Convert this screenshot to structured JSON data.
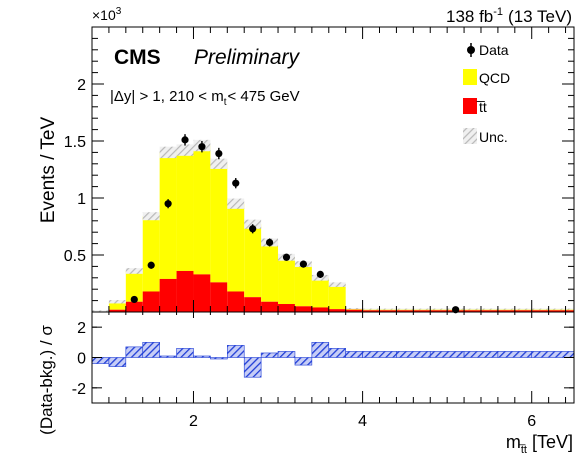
{
  "chart_data": [
    {
      "type": "histogram-stacked",
      "header": {
        "lumi": "138 fb",
        "lumi_sup": "-1",
        "energy": "(13 TeV)",
        "exponent_base": "×10",
        "exponent_power": "3"
      },
      "label_experiment": "CMS",
      "label_status": "Preliminary",
      "selection": {
        "part1": "|Δy| > 1, 210 < m",
        "sub": "t",
        "part2": "< 475 GeV"
      },
      "ylabel": "Events / TeV",
      "xlim": [
        0.8,
        6.5
      ],
      "ylim": [
        0,
        2.5
      ],
      "yticks": [
        "0.5",
        "1",
        "1.5",
        "2"
      ],
      "yticks_values": [
        0.5,
        1.0,
        1.5,
        2.0
      ],
      "legend": {
        "placement": "top-right",
        "data": "Data",
        "qcd": "QCD",
        "ttbar": "t̅t",
        "unc": "Unc."
      },
      "colors": {
        "qcd": "#ffff00",
        "ttbar": "#ff0000",
        "data": "#000000",
        "unc": "#bbbbbb"
      },
      "bin_edges": [
        0.8,
        1.0,
        1.2,
        1.4,
        1.6,
        1.8,
        2.0,
        2.2,
        2.4,
        2.6,
        2.8,
        3.0,
        3.2,
        3.4,
        3.6,
        3.8,
        4.0,
        4.4,
        4.8,
        5.2,
        5.6,
        6.0,
        6.5
      ],
      "series": [
        {
          "name": "t̅t",
          "values": [
            0.002,
            0.02,
            0.09,
            0.18,
            0.29,
            0.36,
            0.33,
            0.26,
            0.18,
            0.13,
            0.09,
            0.07,
            0.05,
            0.04,
            0.025,
            0.02,
            0.015,
            0.015,
            0.015,
            0.015,
            0.015,
            0.015
          ]
        },
        {
          "name": "QCD",
          "values": [
            0.003,
            0.07,
            0.27,
            0.66,
            1.11,
            1.06,
            1.13,
            1.04,
            0.77,
            0.64,
            0.52,
            0.41,
            0.37,
            0.26,
            0.215,
            0.01,
            0.01,
            0.01,
            0.01,
            0.01,
            0.01,
            0.01
          ]
        }
      ],
      "unc_band": [
        0.01,
        0.015,
        0.025,
        0.035,
        0.05,
        0.05,
        0.05,
        0.045,
        0.045,
        0.04,
        0.035,
        0.03,
        0.025,
        0.025,
        0.02,
        0.005,
        0.005,
        0.005,
        0.005,
        0.005,
        0.005,
        0.005
      ],
      "data_points": {
        "x": [
          1.3,
          1.5,
          1.7,
          1.9,
          2.1,
          2.3,
          2.5,
          2.7,
          2.9,
          3.1,
          3.3,
          3.5,
          5.1
        ],
        "y": [
          0.11,
          0.41,
          0.95,
          1.51,
          1.45,
          1.39,
          1.13,
          0.73,
          0.61,
          0.48,
          0.42,
          0.33,
          0.02
        ],
        "err": [
          0.02,
          0.03,
          0.04,
          0.05,
          0.05,
          0.05,
          0.045,
          0.04,
          0.035,
          0.03,
          0.03,
          0.03,
          0.01
        ]
      }
    },
    {
      "type": "bar",
      "ylabel": "(Data-bkg.) / σ",
      "xlabel": "m",
      "xlabel_sub": "t̅t",
      "xlabel_unit": "[TeV]",
      "xlim": [
        0.8,
        6.5
      ],
      "ylim": [
        -3,
        3
      ],
      "yticks": [
        "-2",
        "0",
        "2"
      ],
      "yticks_values": [
        -2,
        0,
        2
      ],
      "xticks": [
        "2",
        "4",
        "6"
      ],
      "xticks_values": [
        2,
        4,
        6
      ],
      "color": "#1f3dd6",
      "bin_edges": [
        0.8,
        1.0,
        1.2,
        1.4,
        1.6,
        1.8,
        2.0,
        2.2,
        2.4,
        2.6,
        2.8,
        3.0,
        3.2,
        3.4,
        3.6,
        3.8,
        4.0,
        4.4,
        4.8,
        5.2,
        5.6,
        6.0,
        6.5
      ],
      "values": [
        -0.4,
        -0.6,
        0.7,
        1.0,
        0.1,
        0.6,
        0.1,
        0.0,
        0.8,
        -1.3,
        0.3,
        0.4,
        -0.5,
        1.0,
        0.6,
        0.4,
        0.4,
        0.4,
        0.4,
        0.4,
        0.4,
        0.4
      ]
    }
  ]
}
